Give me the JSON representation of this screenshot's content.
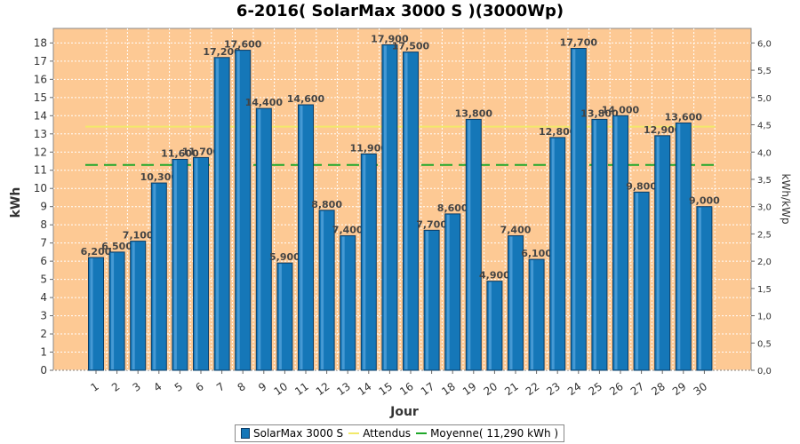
{
  "chart_data": {
    "type": "bar",
    "title": "6-2016( SolarMax 3000 S )(3000Wp)",
    "xlabel": "Jour",
    "ylabel": "kWh",
    "ylabel_right": "kWh/kWp",
    "categories": [
      "1",
      "2",
      "3",
      "4",
      "5",
      "6",
      "7",
      "8",
      "9",
      "10",
      "11",
      "12",
      "13",
      "14",
      "15",
      "16",
      "17",
      "18",
      "19",
      "20",
      "21",
      "22",
      "23",
      "24",
      "25",
      "26",
      "27",
      "28",
      "29",
      "30"
    ],
    "series": [
      {
        "name": "SolarMax 3000 S",
        "values": [
          6.2,
          6.5,
          7.1,
          10.3,
          11.6,
          11.7,
          17.2,
          17.6,
          14.4,
          5.9,
          14.6,
          8.8,
          7.4,
          11.9,
          17.9,
          17.5,
          7.7,
          8.6,
          13.8,
          4.9,
          7.4,
          6.1,
          12.8,
          17.7,
          13.8,
          14.0,
          9.8,
          12.9,
          13.6,
          9.0
        ],
        "labels": [
          "6,200",
          "6,500",
          "7,100",
          "10,300",
          "11,600",
          "11,700",
          "17,200",
          "17,600",
          "14,400",
          "5,900",
          "14,600",
          "8,800",
          "7,400",
          "11,900",
          "17,900",
          "17,500",
          "7,700",
          "8,600",
          "13,800",
          "4,900",
          "7,400",
          "6,100",
          "12,800",
          "17,700",
          "13,800",
          "14,000",
          "9,800",
          "12,900",
          "13,600",
          "9,000"
        ]
      }
    ],
    "attendus": 13.4,
    "moyenne": 11.29,
    "ylim": [
      0,
      18.8
    ],
    "yticks": [
      "0",
      "1",
      "2",
      "3",
      "4",
      "5",
      "6",
      "7",
      "8",
      "9",
      "10",
      "11",
      "12",
      "13",
      "14",
      "15",
      "16",
      "17",
      "18"
    ],
    "y2ticks": [
      "0,0",
      "0,5",
      "1,0",
      "1,5",
      "2,0",
      "2,5",
      "3,0",
      "3,5",
      "4,0",
      "4,5",
      "5,0",
      "5,5",
      "6,0"
    ],
    "y2_per_kwh": 0.3333333,
    "grid": true,
    "legend_position": "bottom",
    "legend": [
      "SolarMax 3000 S",
      "Attendus",
      "Moyenne( 11,290 kWh )"
    ],
    "colors": {
      "plot_bg": "#fdc994",
      "bar": "#1577b8",
      "bar_edge": "#0b3c66",
      "attendus": "#f2e96a",
      "moyenne": "#1fa82a",
      "grid": "#ffffff"
    }
  }
}
